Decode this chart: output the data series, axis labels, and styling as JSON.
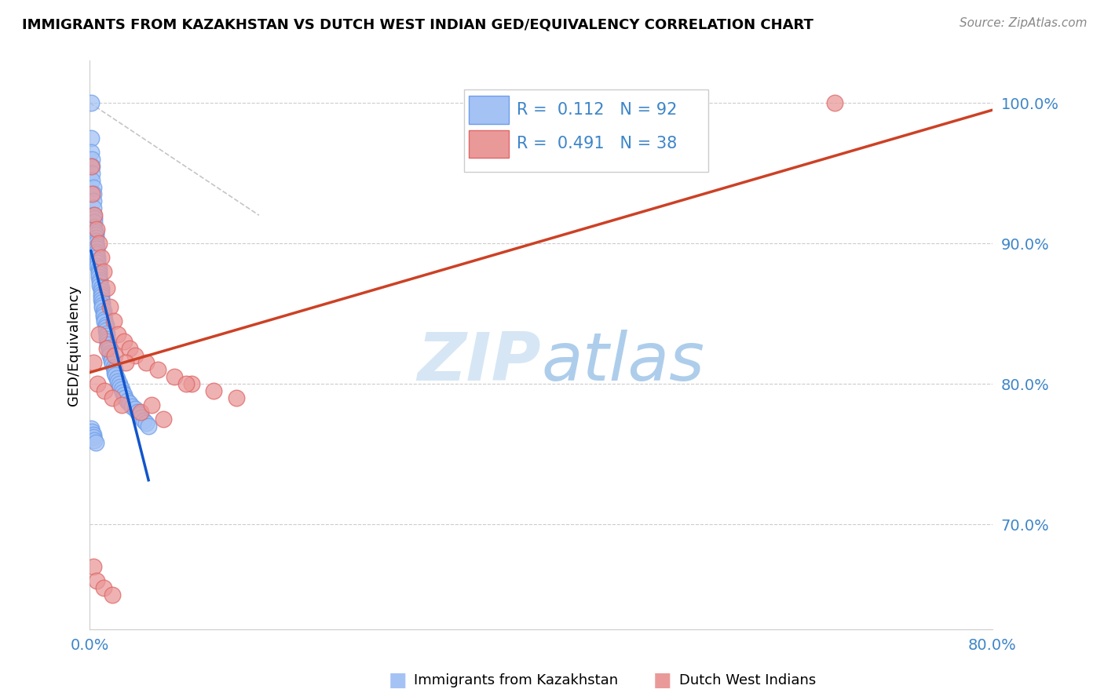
{
  "title": "IMMIGRANTS FROM KAZAKHSTAN VS DUTCH WEST INDIAN GED/EQUIVALENCY CORRELATION CHART",
  "source": "Source: ZipAtlas.com",
  "ylabel": "GED/Equivalency",
  "ytick_labels": [
    "70.0%",
    "80.0%",
    "90.0%",
    "100.0%"
  ],
  "ytick_values": [
    0.7,
    0.8,
    0.9,
    1.0
  ],
  "xlim": [
    0.0,
    0.8
  ],
  "ylim": [
    0.625,
    1.03
  ],
  "legend_blue_label": "R =  0.112   N = 92",
  "legend_pink_label": "R =  0.491   N = 38",
  "legend_series1": "Immigrants from Kazakhstan",
  "legend_series2": "Dutch West Indians",
  "blue_color": "#a4c2f4",
  "blue_edge_color": "#6d9eeb",
  "pink_color": "#ea9999",
  "pink_edge_color": "#e06666",
  "blue_line_color": "#1155cc",
  "pink_line_color": "#cc4125",
  "diag_color": "#b7b7b7",
  "watermark_zip_color": "#cfe2f3",
  "watermark_atlas_color": "#9fc5e8",
  "grid_color": "#cccccc",
  "blue_x": [
    0.001,
    0.001,
    0.001,
    0.002,
    0.002,
    0.002,
    0.002,
    0.003,
    0.003,
    0.003,
    0.003,
    0.003,
    0.004,
    0.004,
    0.004,
    0.004,
    0.005,
    0.005,
    0.005,
    0.005,
    0.005,
    0.006,
    0.006,
    0.006,
    0.006,
    0.007,
    0.007,
    0.007,
    0.007,
    0.008,
    0.008,
    0.008,
    0.008,
    0.009,
    0.009,
    0.009,
    0.01,
    0.01,
    0.01,
    0.01,
    0.01,
    0.011,
    0.011,
    0.011,
    0.012,
    0.012,
    0.012,
    0.013,
    0.013,
    0.014,
    0.014,
    0.014,
    0.015,
    0.015,
    0.015,
    0.016,
    0.016,
    0.017,
    0.017,
    0.018,
    0.018,
    0.019,
    0.019,
    0.02,
    0.021,
    0.022,
    0.022,
    0.023,
    0.024,
    0.025,
    0.026,
    0.027,
    0.028,
    0.029,
    0.03,
    0.031,
    0.033,
    0.035,
    0.037,
    0.04,
    0.042,
    0.044,
    0.046,
    0.048,
    0.05,
    0.052,
    0.001,
    0.002,
    0.003,
    0.003,
    0.004,
    0.005
  ],
  "blue_y": [
    1.0,
    0.975,
    0.965,
    0.96,
    0.955,
    0.95,
    0.945,
    0.94,
    0.935,
    0.93,
    0.925,
    0.92,
    0.918,
    0.915,
    0.912,
    0.91,
    0.908,
    0.906,
    0.904,
    0.902,
    0.9,
    0.898,
    0.896,
    0.894,
    0.892,
    0.89,
    0.888,
    0.886,
    0.884,
    0.882,
    0.88,
    0.878,
    0.876,
    0.874,
    0.872,
    0.87,
    0.868,
    0.866,
    0.864,
    0.862,
    0.86,
    0.858,
    0.856,
    0.854,
    0.852,
    0.85,
    0.848,
    0.846,
    0.844,
    0.842,
    0.84,
    0.838,
    0.836,
    0.834,
    0.832,
    0.83,
    0.828,
    0.826,
    0.824,
    0.822,
    0.82,
    0.818,
    0.816,
    0.814,
    0.812,
    0.81,
    0.808,
    0.806,
    0.804,
    0.802,
    0.8,
    0.798,
    0.796,
    0.794,
    0.792,
    0.79,
    0.788,
    0.786,
    0.784,
    0.782,
    0.78,
    0.778,
    0.776,
    0.774,
    0.772,
    0.77,
    0.768,
    0.766,
    0.764,
    0.762,
    0.76,
    0.758
  ],
  "pink_x": [
    0.001,
    0.002,
    0.004,
    0.006,
    0.008,
    0.01,
    0.012,
    0.015,
    0.018,
    0.021,
    0.025,
    0.03,
    0.035,
    0.04,
    0.05,
    0.06,
    0.075,
    0.09,
    0.11,
    0.13,
    0.003,
    0.007,
    0.013,
    0.02,
    0.028,
    0.045,
    0.065,
    0.085,
    0.008,
    0.015,
    0.022,
    0.032,
    0.055,
    0.003,
    0.006,
    0.012,
    0.02,
    0.66
  ],
  "pink_y": [
    0.955,
    0.935,
    0.92,
    0.91,
    0.9,
    0.89,
    0.88,
    0.868,
    0.855,
    0.845,
    0.835,
    0.83,
    0.825,
    0.82,
    0.815,
    0.81,
    0.805,
    0.8,
    0.795,
    0.79,
    0.815,
    0.8,
    0.795,
    0.79,
    0.785,
    0.78,
    0.775,
    0.8,
    0.835,
    0.825,
    0.82,
    0.815,
    0.785,
    0.67,
    0.66,
    0.655,
    0.65,
    1.0
  ]
}
